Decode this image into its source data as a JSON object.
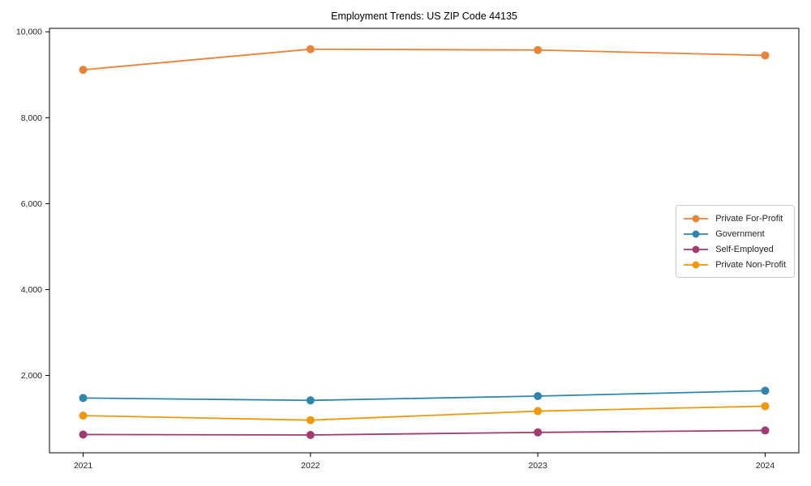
{
  "chart_data": {
    "type": "line",
    "title": "Employment Trends: US ZIP Code 44135",
    "categories": [
      "2021",
      "2022",
      "2023",
      "2024"
    ],
    "series": [
      {
        "name": "Private For-Profit",
        "color": "#E8833A",
        "values": [
          9115,
          9595,
          9575,
          9450
        ]
      },
      {
        "name": "Government",
        "color": "#2E86AB",
        "values": [
          1475,
          1420,
          1520,
          1645
        ]
      },
      {
        "name": "Self-Employed",
        "color": "#A23B72",
        "values": [
          625,
          615,
          675,
          720
        ]
      },
      {
        "name": "Private Non-Profit",
        "color": "#F0980B",
        "values": [
          1065,
          960,
          1170,
          1285
        ]
      }
    ],
    "xlabel": "",
    "ylabel": "",
    "yticks": [
      2000,
      4000,
      6000,
      8000,
      10000
    ],
    "ylim": [
      200,
      10080
    ],
    "grid": false,
    "legend_position": "right",
    "marker": "circle",
    "axis_color": "#000000",
    "text_color": "#262626",
    "background": "#ffffff"
  }
}
